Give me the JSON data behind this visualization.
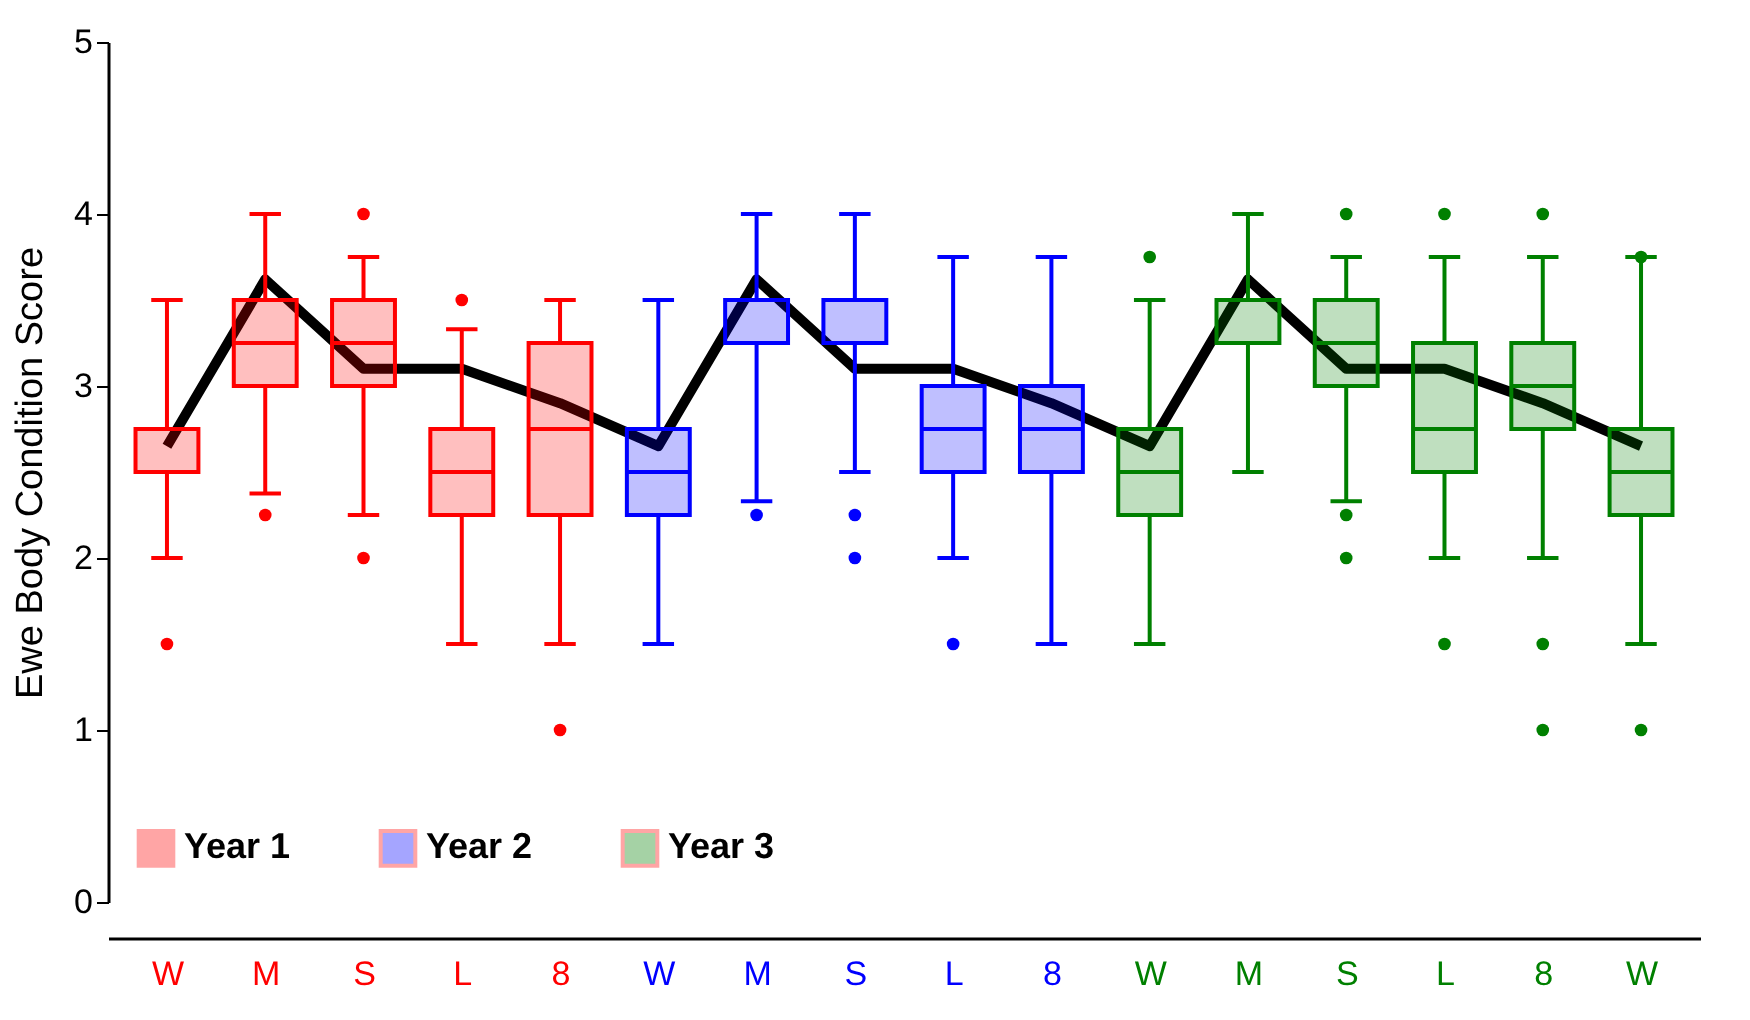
{
  "chart_data": {
    "type": "box",
    "ylabel": "Ewe Body Condition Score",
    "categories": [
      "W",
      "M",
      "S",
      "L",
      "8",
      "W",
      "M",
      "S",
      "L",
      "8",
      "W",
      "M",
      "S",
      "L",
      "8",
      "W"
    ],
    "ylim": [
      0,
      5
    ],
    "yticks": [
      0,
      1,
      2,
      3,
      4,
      5
    ],
    "grid": false,
    "legend": "bottom",
    "series": [
      {
        "name": "Year 1",
        "color": "#ff0000",
        "boxes": [
          {
            "low": 2.0,
            "q1": 2.5,
            "median": 2.5,
            "q3": 2.75,
            "high": 3.5,
            "outliers": [
              1.5
            ]
          },
          {
            "low": 2.375,
            "q1": 3.0,
            "median": 3.25,
            "q3": 3.5,
            "high": 4.0,
            "outliers": [
              2.25
            ]
          },
          {
            "low": 2.25,
            "q1": 3.0,
            "median": 3.25,
            "q3": 3.5,
            "high": 3.75,
            "outliers": [
              4.0,
              2.0
            ]
          },
          {
            "low": 1.5,
            "q1": 2.25,
            "median": 2.5,
            "q3": 2.75,
            "high": 3.33,
            "outliers": [
              3.5
            ]
          },
          {
            "low": 1.5,
            "q1": 2.25,
            "median": 2.75,
            "q3": 3.25,
            "high": 3.5,
            "outliers": [
              1.0
            ]
          },
          null,
          null,
          null,
          null,
          null,
          null,
          null,
          null,
          null,
          null,
          null
        ]
      },
      {
        "name": "Year 2",
        "color": "#0000ff",
        "boxes": [
          null,
          null,
          null,
          null,
          null,
          {
            "low": 1.5,
            "q1": 2.25,
            "median": 2.5,
            "q3": 2.75,
            "high": 3.5
          },
          {
            "low": 2.33,
            "q1": 3.25,
            "median": 3.5,
            "q3": 3.5,
            "high": 4.0,
            "outliers": [
              2.25
            ]
          },
          {
            "low": 2.5,
            "q1": 3.25,
            "median": 3.5,
            "q3": 3.5,
            "high": 4.0,
            "outliers": [
              2.25,
              2.0
            ]
          },
          {
            "low": 2.0,
            "q1": 2.5,
            "median": 2.75,
            "q3": 3.0,
            "high": 3.75,
            "outliers": [
              1.5
            ]
          },
          {
            "low": 1.5,
            "q1": 2.5,
            "median": 2.75,
            "q3": 3.0,
            "high": 3.75
          },
          null,
          null,
          null,
          null,
          null,
          null
        ]
      },
      {
        "name": "Year 3",
        "color": "#008000",
        "boxes": [
          null,
          null,
          null,
          null,
          null,
          null,
          null,
          null,
          null,
          null,
          {
            "low": 1.5,
            "q1": 2.25,
            "median": 2.5,
            "q3": 2.75,
            "high": 3.5,
            "outliers": [
              3.75
            ]
          },
          {
            "low": 2.5,
            "q1": 3.25,
            "median": 3.5,
            "q3": 3.5,
            "high": 4.0
          },
          {
            "low": 2.33,
            "q1": 3.0,
            "median": 3.25,
            "q3": 3.5,
            "high": 3.75,
            "outliers": [
              4.0,
              2.25,
              2.0
            ]
          },
          {
            "low": 2.0,
            "q1": 2.5,
            "median": 2.75,
            "q3": 3.25,
            "high": 3.75,
            "outliers": [
              4.0,
              1.5
            ]
          },
          {
            "low": 2.0,
            "q1": 2.75,
            "median": 3.0,
            "q3": 3.25,
            "high": 3.75,
            "outliers": [
              4.0,
              1.5,
              1.0
            ]
          },
          {
            "low": 1.5,
            "q1": 2.25,
            "median": 2.5,
            "q3": 2.75,
            "high": 3.75,
            "outliers": [
              3.75,
              1.0
            ]
          }
        ]
      },
      {
        "type": "line",
        "color": "#000000",
        "values": [
          2.65,
          3.62,
          3.1,
          3.1,
          2.9,
          2.65,
          3.62,
          3.1,
          3.1,
          2.9,
          2.65,
          3.62,
          3.1,
          3.1,
          2.9,
          2.65
        ]
      }
    ]
  }
}
